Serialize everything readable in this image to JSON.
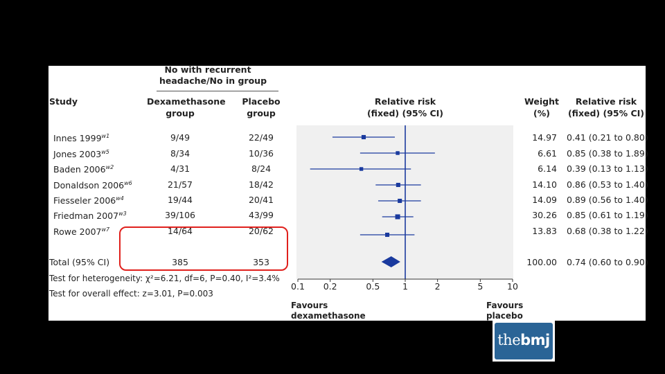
{
  "header": {
    "group_header_line1": "No with recurrent",
    "group_header_line2": "headache/No in group",
    "col_study": "Study",
    "col_dex_line1": "Dexamethasone",
    "col_dex_line2": "group",
    "col_placebo_line1": "Placebo",
    "col_placebo_line2": "group",
    "col_rr_line1": "Relative risk",
    "col_rr_line2": "(fixed) (95% CI)",
    "col_weight_line1": "Weight",
    "col_weight_line2": "(%)",
    "col_rr2_line1": "Relative risk",
    "col_rr2_line2": "(fixed) (95% CI)"
  },
  "studies": [
    {
      "name": "Innes 1999",
      "ref": "w1",
      "dex": "9/49",
      "placebo": "22/49",
      "weight": "14.97",
      "rr_text": "0.41 (0.21 to 0.80)"
    },
    {
      "name": "Jones 2003",
      "ref": "w5",
      "dex": "8/34",
      "placebo": "10/36",
      "weight": "6.61",
      "rr_text": "0.85 (0.38 to 1.89)"
    },
    {
      "name": "Baden 2006",
      "ref": "w2",
      "dex": "4/31",
      "placebo": "8/24",
      "weight": "6.14",
      "rr_text": "0.39 (0.13 to 1.13)"
    },
    {
      "name": "Donaldson 2006",
      "ref": "w6",
      "dex": "21/57",
      "placebo": "18/42",
      "weight": "14.10",
      "rr_text": "0.86 (0.53 to 1.40)"
    },
    {
      "name": "Fiesseler 2006",
      "ref": "w4",
      "dex": "19/44",
      "placebo": "20/41",
      "weight": "14.09",
      "rr_text": "0.89 (0.56 to 1.40)"
    },
    {
      "name": "Friedman 2007",
      "ref": "w3",
      "dex": "39/106",
      "placebo": "43/99",
      "weight": "30.26",
      "rr_text": "0.85 (0.61 to 1.19)"
    },
    {
      "name": "Rowe 2007",
      "ref": "w7",
      "dex": "14/64",
      "placebo": "20/62",
      "weight": "13.83",
      "rr_text": "0.68 (0.38 to 1.22)"
    }
  ],
  "total": {
    "label": "Total (95% CI)",
    "dex": "385",
    "placebo": "353",
    "weight": "100.00",
    "rr_text": "0.74 (0.60 to 0.90)"
  },
  "footnotes": {
    "heterogeneity": "Test for heterogeneity: χ²=6.21, df=6, P=0.40, I²=3.4%",
    "overall": "Test for overall effect: z=3.01, P=0.003"
  },
  "favours": {
    "left_line1": "Favours",
    "left_line2": "dexamethasone",
    "right_line1": "Favours",
    "right_line2": "placebo"
  },
  "logo": {
    "the": "the",
    "bmj": "bmj"
  },
  "colors": {
    "marker": "#1a3a9e",
    "line": "#1a3a9e",
    "highlight": "#e0201c",
    "plot_bg": "#f0f0f0"
  },
  "chart_data": {
    "type": "forest",
    "xscale": "log",
    "xlim": [
      0.1,
      10
    ],
    "xticks": [
      0.1,
      0.2,
      0.5,
      1,
      2,
      5,
      10
    ],
    "xtick_labels": [
      "0.1",
      "0.2",
      "0.5",
      "1",
      "2",
      "5",
      "10"
    ],
    "reference_line": 1,
    "rows": [
      {
        "label": "Innes 1999",
        "rr": 0.41,
        "lo": 0.21,
        "hi": 0.8,
        "weight": 14.97
      },
      {
        "label": "Jones 2003",
        "rr": 0.85,
        "lo": 0.38,
        "hi": 1.89,
        "weight": 6.61
      },
      {
        "label": "Baden 2006",
        "rr": 0.39,
        "lo": 0.13,
        "hi": 1.13,
        "weight": 6.14
      },
      {
        "label": "Donaldson 2006",
        "rr": 0.86,
        "lo": 0.53,
        "hi": 1.4,
        "weight": 14.1
      },
      {
        "label": "Fiesseler 2006",
        "rr": 0.89,
        "lo": 0.56,
        "hi": 1.4,
        "weight": 14.09
      },
      {
        "label": "Friedman 2007",
        "rr": 0.85,
        "lo": 0.61,
        "hi": 1.19,
        "weight": 30.26
      },
      {
        "label": "Rowe 2007",
        "rr": 0.68,
        "lo": 0.38,
        "hi": 1.22,
        "weight": 13.83
      }
    ],
    "pooled": {
      "label": "Total (95% CI)",
      "rr": 0.74,
      "lo": 0.6,
      "hi": 0.9
    }
  }
}
